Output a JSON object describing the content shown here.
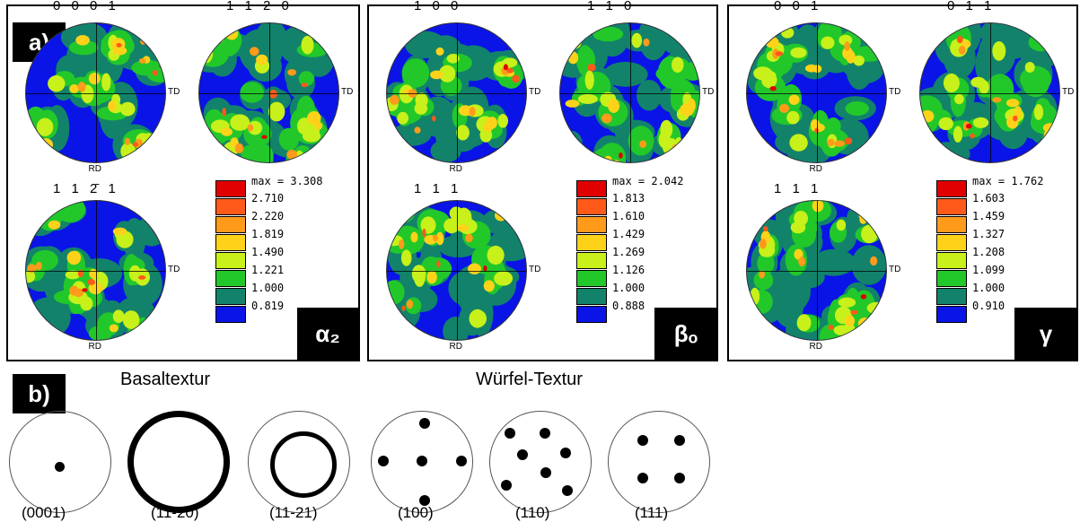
{
  "panel_a": {
    "tag": "a)",
    "groups": [
      {
        "phase_label": "α₂",
        "pole_figures": [
          {
            "label": "0 0 0 1",
            "td": "TD",
            "rd": "RD"
          },
          {
            "label": "1 1 2 0",
            "td": "TD",
            "rd": ""
          },
          {
            "label": "1 1 2̄ 1",
            "td": "TD",
            "rd": "RD"
          }
        ],
        "legend": {
          "max": "max = 3.308",
          "levels": [
            "2.710",
            "2.220",
            "1.819",
            "1.490",
            "1.221",
            "1.000",
            "0.819"
          ]
        }
      },
      {
        "phase_label": "βₒ",
        "pole_figures": [
          {
            "label": "1 0 0",
            "td": "TD",
            "rd": "RD"
          },
          {
            "label": "1 1 0",
            "td": "TD",
            "rd": ""
          },
          {
            "label": "1 1 1",
            "td": "TD",
            "rd": "RD"
          }
        ],
        "legend": {
          "max": "max = 2.042",
          "levels": [
            "1.813",
            "1.610",
            "1.429",
            "1.269",
            "1.126",
            "1.000",
            "0.888"
          ]
        }
      },
      {
        "phase_label": "γ",
        "pole_figures": [
          {
            "label": "0 0 1",
            "td": "TD",
            "rd": "RD"
          },
          {
            "label": "0 1 1",
            "td": "TD",
            "rd": ""
          },
          {
            "label": "1 1 1",
            "td": "TD",
            "rd": "RD"
          }
        ],
        "legend": {
          "max": "max = 1.762",
          "levels": [
            "1.603",
            "1.459",
            "1.327",
            "1.208",
            "1.099",
            "1.000",
            "0.910"
          ]
        }
      }
    ],
    "level_colors": [
      "#e00000",
      "#ff5a1a",
      "#ff9a1a",
      "#ffd21a",
      "#c8f01a",
      "#22c82a",
      "#12836a",
      "#0a14e6"
    ]
  },
  "panel_b": {
    "tag": "b)",
    "basal_title": "Basaltextur",
    "cube_title": "Würfel-Textur",
    "captions": [
      "(0001)",
      "(11-20)",
      "(11-21)",
      "(100)",
      "(110)",
      "(111)"
    ]
  }
}
